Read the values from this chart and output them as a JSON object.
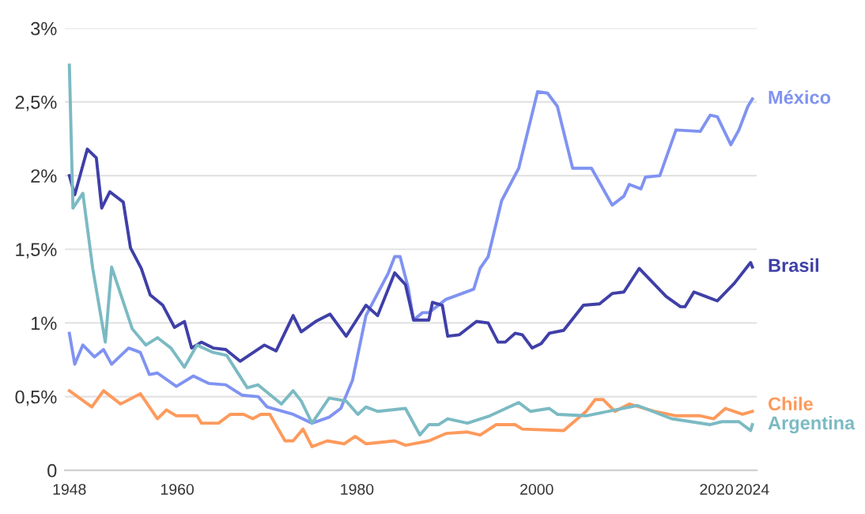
{
  "chart_data": {
    "type": "line",
    "xlim": [
      1947.5,
      2024.5
    ],
    "ylim": [
      0,
      3
    ],
    "xticks": [
      1948,
      1960,
      1980,
      2000,
      2020,
      2024
    ],
    "yticks": [
      {
        "value": 0,
        "label": "0"
      },
      {
        "value": 0.5,
        "label": "0,5%"
      },
      {
        "value": 1,
        "label": "1%"
      },
      {
        "value": 1.5,
        "label": "1,5%"
      },
      {
        "value": 2,
        "label": "2%"
      },
      {
        "value": 2.5,
        "label": "2,5%"
      },
      {
        "value": 3,
        "label": "3%"
      }
    ],
    "grid": "y",
    "marker": "none",
    "line_style": "solid",
    "series": [
      {
        "name": "México",
        "color": "#8093f1",
        "x": [
          1948,
          1948.6,
          1949.5,
          1950.8,
          1951.8,
          1952.7,
          1954.6,
          1955.9,
          1956.9,
          1957.8,
          1959.9,
          1961.8,
          1963.5,
          1965.4,
          1967.2,
          1969,
          1970,
          1972.9,
          1975,
          1976.9,
          1978.2,
          1979.5,
          1981,
          1983.5,
          1984.2,
          1984.8,
          1985.7,
          1986.3,
          1987.3,
          1988,
          1989.9,
          1993,
          1993.7,
          1994.6,
          1996.1,
          1998,
          2000.1,
          2001.2,
          2002.3,
          2004,
          2006.1,
          2008.4,
          2009.7,
          2010.3,
          2011.6,
          2012.1,
          2013.7,
          2015.5,
          2018.2,
          2019.3,
          2020.1,
          2021.6,
          2022.5,
          2023.5,
          2024
        ],
        "values": [
          0.93,
          0.72,
          0.85,
          0.77,
          0.82,
          0.72,
          0.83,
          0.8,
          0.65,
          0.66,
          0.57,
          0.64,
          0.59,
          0.58,
          0.51,
          0.5,
          0.43,
          0.38,
          0.32,
          0.36,
          0.42,
          0.61,
          1.05,
          1.34,
          1.45,
          1.45,
          1.24,
          1.02,
          1.07,
          1.07,
          1.16,
          1.23,
          1.37,
          1.45,
          1.83,
          2.05,
          2.57,
          2.56,
          2.47,
          2.05,
          2.05,
          1.8,
          1.86,
          1.94,
          1.91,
          1.99,
          2.0,
          2.31,
          2.3,
          2.41,
          2.4,
          2.21,
          2.31,
          2.47,
          2.52
        ]
      },
      {
        "name": "Brasil",
        "color": "#3f3fa8",
        "x": [
          1948,
          1948.6,
          1950,
          1951,
          1951.6,
          1952.5,
          1954,
          1954.8,
          1956,
          1957,
          1958.4,
          1959.7,
          1960.8,
          1961.6,
          1962.7,
          1964,
          1965.4,
          1967,
          1969.7,
          1971,
          1972.9,
          1973.8,
          1975.4,
          1977,
          1978.8,
          1981,
          1982.3,
          1984.2,
          1985.4,
          1986.3,
          1988,
          1988.4,
          1989.5,
          1990.1,
          1991.4,
          1993.3,
          1994.6,
          1995.7,
          1996.5,
          1997.6,
          1998.4,
          1999.5,
          2000.5,
          2001.4,
          2003,
          2005.2,
          2007,
          2008.4,
          2009.7,
          2011.4,
          2014.4,
          2016,
          2016.5,
          2017.5,
          2018.8,
          2020.1,
          2022,
          2023.8,
          2024
        ],
        "values": [
          2.0,
          1.87,
          2.18,
          2.12,
          1.78,
          1.89,
          1.82,
          1.51,
          1.37,
          1.19,
          1.12,
          0.97,
          1.01,
          0.83,
          0.87,
          0.83,
          0.82,
          0.74,
          0.85,
          0.81,
          1.05,
          0.94,
          1.01,
          1.06,
          0.91,
          1.12,
          1.05,
          1.34,
          1.26,
          1.02,
          1.02,
          1.14,
          1.12,
          0.91,
          0.92,
          1.01,
          1.0,
          0.87,
          0.87,
          0.93,
          0.92,
          0.83,
          0.86,
          0.93,
          0.95,
          1.12,
          1.13,
          1.2,
          1.21,
          1.37,
          1.18,
          1.11,
          1.11,
          1.21,
          1.18,
          1.15,
          1.27,
          1.41,
          1.38
        ]
      },
      {
        "name": "Chile",
        "color": "#fd9a5c",
        "x": [
          1948,
          1950.5,
          1951.8,
          1953.7,
          1955.9,
          1957.8,
          1958.8,
          1959.9,
          1962.2,
          1962.7,
          1964.6,
          1965.9,
          1967.4,
          1968.4,
          1969.3,
          1970.3,
          1972,
          1972.9,
          1974,
          1975,
          1976.7,
          1978.6,
          1979.8,
          1981,
          1984.2,
          1985.4,
          1988,
          1989.9,
          1992.3,
          1993.7,
          1995.5,
          1997.6,
          1998.4,
          2003,
          2005.5,
          2006.5,
          2007.4,
          2008.7,
          2010.3,
          2013.1,
          2015.5,
          2018.2,
          2019.7,
          2021,
          2022.9,
          2024
        ],
        "values": [
          0.54,
          0.43,
          0.54,
          0.45,
          0.52,
          0.35,
          0.41,
          0.37,
          0.37,
          0.32,
          0.32,
          0.38,
          0.38,
          0.35,
          0.38,
          0.38,
          0.2,
          0.2,
          0.28,
          0.16,
          0.2,
          0.18,
          0.23,
          0.18,
          0.2,
          0.17,
          0.2,
          0.25,
          0.26,
          0.24,
          0.31,
          0.31,
          0.28,
          0.27,
          0.4,
          0.48,
          0.48,
          0.4,
          0.45,
          0.4,
          0.37,
          0.37,
          0.35,
          0.42,
          0.38,
          0.4
        ]
      },
      {
        "name": "Argentina",
        "color": "#7bbac3",
        "x": [
          1948,
          1948.4,
          1949.5,
          1950.6,
          1952,
          1952.7,
          1955,
          1956.5,
          1957.8,
          1959.3,
          1960.8,
          1962.2,
          1964,
          1965.5,
          1967.8,
          1969,
          1971.6,
          1972.9,
          1973.8,
          1975,
          1976.9,
          1978.8,
          1980.1,
          1981,
          1982.3,
          1985.4,
          1987,
          1988,
          1989.1,
          1990.1,
          1992.3,
          1994.8,
          1998,
          1999.3,
          2001.4,
          2002.3,
          2005.5,
          2011.2,
          2015,
          2019.3,
          2020.6,
          2022.5,
          2023.8,
          2024
        ],
        "values": [
          2.75,
          1.78,
          1.88,
          1.37,
          0.87,
          1.38,
          0.96,
          0.85,
          0.9,
          0.83,
          0.7,
          0.85,
          0.8,
          0.78,
          0.56,
          0.58,
          0.45,
          0.54,
          0.47,
          0.32,
          0.49,
          0.47,
          0.38,
          0.43,
          0.4,
          0.42,
          0.24,
          0.31,
          0.31,
          0.35,
          0.32,
          0.37,
          0.46,
          0.4,
          0.42,
          0.38,
          0.37,
          0.44,
          0.35,
          0.31,
          0.33,
          0.33,
          0.27,
          0.31
        ]
      }
    ]
  }
}
